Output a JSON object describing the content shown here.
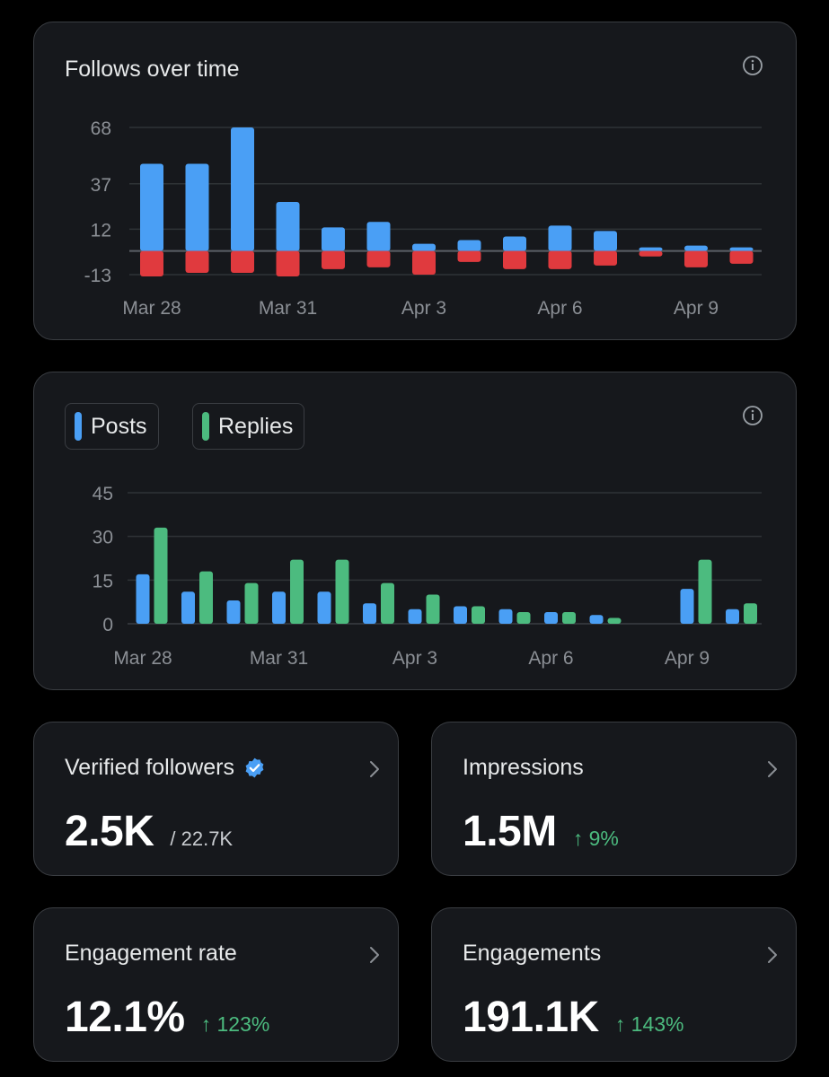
{
  "follows_card": {
    "title": "Follows over time"
  },
  "activity_card": {
    "legend": [
      {
        "label": "Posts",
        "color": "#4a9ff5"
      },
      {
        "label": "Replies",
        "color": "#4cbb7f"
      }
    ]
  },
  "stats": {
    "verified_followers": {
      "title": "Verified followers",
      "value": "2.5K",
      "sub": "/ 22.7K"
    },
    "impressions": {
      "title": "Impressions",
      "value": "1.5M",
      "change": "↑ 9%"
    },
    "engagement_rate": {
      "title": "Engagement rate",
      "value": "12.1%",
      "change": "↑ 123%"
    },
    "engagements": {
      "title": "Engagements",
      "value": "191.1K",
      "change": "↑ 143%"
    }
  },
  "colors": {
    "positive": "#4cbb7f",
    "posts": "#4a9ff5",
    "replies": "#4cbb7f",
    "gained": "#4a9ff5",
    "lost": "#e03a3e",
    "card_bg": "#16181c",
    "border": "#3a3d42"
  },
  "chart_data": [
    {
      "type": "bar",
      "categories": [
        "Mar 28",
        "Mar 29",
        "Mar 30",
        "Mar 31",
        "Apr 1",
        "Apr 2",
        "Apr 3",
        "Apr 4",
        "Apr 5",
        "Apr 6",
        "Apr 7",
        "Apr 8",
        "Apr 9",
        "Apr 10"
      ],
      "x_tick_labels": [
        "Mar 28",
        "Mar 31",
        "Apr 3",
        "Apr 6",
        "Apr 9"
      ],
      "y_ticks": [
        68,
        37,
        12,
        -13
      ],
      "ylim": [
        -13,
        68
      ],
      "series": [
        {
          "color": "#4a9ff5",
          "values": [
            48,
            48,
            68,
            27,
            13,
            16,
            4,
            6,
            8,
            14,
            11,
            2,
            3,
            2
          ]
        },
        {
          "color": "#e03a3e",
          "values": [
            -14,
            -12,
            -12,
            -14,
            -10,
            -9,
            -13,
            -6,
            -10,
            -10,
            -8,
            -3,
            -9,
            -7
          ]
        }
      ],
      "grid": true,
      "title": "Follows over time"
    },
    {
      "type": "bar",
      "categories": [
        "Mar 28",
        "Mar 29",
        "Mar 30",
        "Mar 31",
        "Apr 1",
        "Apr 2",
        "Apr 3",
        "Apr 4",
        "Apr 5",
        "Apr 6",
        "Apr 7",
        "Apr 8",
        "Apr 9",
        "Apr 10"
      ],
      "x_tick_labels": [
        "Mar 28",
        "Mar 31",
        "Apr 3",
        "Apr 6",
        "Apr 9"
      ],
      "y_ticks": [
        45,
        30,
        15,
        0
      ],
      "ylim": [
        0,
        45
      ],
      "series": [
        {
          "name": "Posts",
          "color": "#4a9ff5",
          "values": [
            17,
            11,
            8,
            11,
            11,
            7,
            5,
            6,
            5,
            4,
            3,
            0,
            12,
            5
          ]
        },
        {
          "name": "Replies",
          "color": "#4cbb7f",
          "values": [
            33,
            18,
            14,
            22,
            22,
            14,
            10,
            6,
            4,
            4,
            2,
            0,
            22,
            7
          ]
        }
      ],
      "grid": true,
      "legend": "top-left"
    }
  ]
}
